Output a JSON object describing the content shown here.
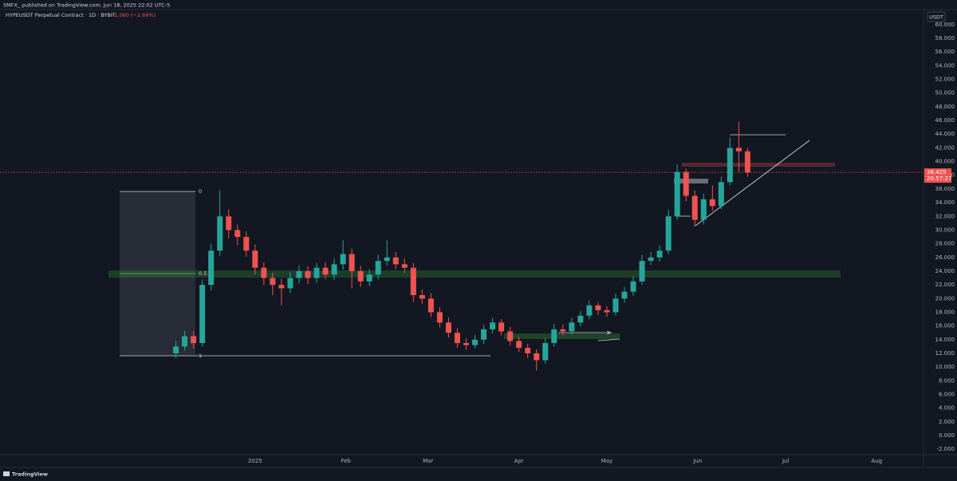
{
  "header": {
    "publisher": "SMFX_ published on TradingView.com, Jun 18, 2025 22:02 UTC-5"
  },
  "footer": {
    "logo": "TradingView"
  },
  "chart_data": {
    "type": "candlestick",
    "title": "HYPEUSDT Perpetual Contract · 1D · BYBIT",
    "change_label": "−1.060 (−2.68%)",
    "y_axis_label": "USDT",
    "last_price": 38.425,
    "countdown": "20:57:27",
    "annotations": [
      "0",
      "0.5",
      "1"
    ],
    "up_color": "#26a69a",
    "down_color": "#ef5350",
    "grid": false,
    "xlim": [
      -87,
      228
    ],
    "xticks": [
      {
        "value": 0,
        "label": "2025"
      },
      {
        "value": 31,
        "label": "Feb"
      },
      {
        "value": 59,
        "label": "Mar"
      },
      {
        "value": 90,
        "label": "Apr"
      },
      {
        "value": 120,
        "label": "May"
      },
      {
        "value": 151,
        "label": "Jun"
      },
      {
        "value": 181,
        "label": "Jul"
      },
      {
        "value": 212,
        "label": "Aug"
      }
    ],
    "ylim": [
      -2.8,
      62.2
    ],
    "yticks": [
      {
        "value": -2,
        "label": "-2.000"
      },
      {
        "value": 0,
        "label": "0.000"
      },
      {
        "value": 2,
        "label": "2.000"
      },
      {
        "value": 4,
        "label": "4.000"
      },
      {
        "value": 6,
        "label": "6.000"
      },
      {
        "value": 8,
        "label": "8.000"
      },
      {
        "value": 10,
        "label": "10.000"
      },
      {
        "value": 12,
        "label": "12.000"
      },
      {
        "value": 14,
        "label": "14.000"
      },
      {
        "value": 16,
        "label": "16.000"
      },
      {
        "value": 18,
        "label": "18.000"
      },
      {
        "value": 20,
        "label": "20.000"
      },
      {
        "value": 22,
        "label": "22.000"
      },
      {
        "value": 24,
        "label": "24.000"
      },
      {
        "value": 26,
        "label": "26.000"
      },
      {
        "value": 28,
        "label": "28.000"
      },
      {
        "value": 30,
        "label": "30.000"
      },
      {
        "value": 32,
        "label": "32.000"
      },
      {
        "value": 34,
        "label": "34.000"
      },
      {
        "value": 36,
        "label": "36.000"
      },
      {
        "value": 38,
        "label": "38.000"
      },
      {
        "value": 40,
        "label": "40.000"
      },
      {
        "value": 42,
        "label": "42.000"
      },
      {
        "value": 44,
        "label": "44.000"
      },
      {
        "value": 46,
        "label": "46.000"
      },
      {
        "value": 48,
        "label": "48.000"
      },
      {
        "value": 50,
        "label": "50.000"
      },
      {
        "value": 52,
        "label": "52.000"
      },
      {
        "value": 54,
        "label": "54.000"
      },
      {
        "value": 56,
        "label": "56.000"
      },
      {
        "value": 58,
        "label": "58.000"
      },
      {
        "value": 60,
        "label": "60.000"
      }
    ],
    "x": [
      -27,
      -24,
      -21,
      -18,
      -15,
      -12,
      -9,
      -6,
      -3,
      0,
      3,
      6,
      9,
      12,
      15,
      18,
      21,
      24,
      27,
      30,
      33,
      36,
      39,
      42,
      45,
      48,
      51,
      54,
      57,
      60,
      63,
      66,
      69,
      72,
      75,
      78,
      81,
      84,
      87,
      90,
      93,
      96,
      99,
      102,
      105,
      108,
      111,
      114,
      117,
      120,
      123,
      126,
      129,
      132,
      135,
      138,
      141,
      144,
      147,
      150,
      153,
      156,
      159,
      162,
      165,
      168
    ],
    "open": [
      12,
      13,
      14.5,
      13.5,
      22,
      27,
      32,
      30,
      29,
      27,
      24.5,
      23,
      22,
      21.5,
      23,
      24,
      23,
      24.5,
      23.5,
      25,
      26.5,
      24,
      22.5,
      23.5,
      25.5,
      26,
      25,
      24.5,
      20.5,
      20,
      18,
      16.5,
      15,
      13.5,
      13.2,
      14,
      15.5,
      16.5,
      15.2,
      13.8,
      12.8,
      12,
      11,
      13.5,
      15.5,
      15.2,
      16.5,
      17.5,
      19,
      18.3,
      18,
      20,
      21,
      22.5,
      25.5,
      26,
      27,
      32,
      38.5,
      35,
      31.5,
      34.5,
      33.5,
      37,
      42,
      41.5
    ],
    "high": [
      13.8,
      15.3,
      15.2,
      22.8,
      28,
      35.8,
      33,
      30.8,
      29.8,
      27.9,
      25.3,
      23.8,
      22.9,
      23.9,
      24.8,
      24.7,
      25.2,
      25.3,
      25.9,
      28.5,
      27.3,
      24.8,
      24.3,
      26.4,
      28.5,
      26.8,
      25.8,
      25.2,
      21.3,
      20.8,
      18.7,
      17.2,
      15.7,
      14.2,
      14.7,
      16.2,
      17.2,
      17,
      15.9,
      14.4,
      13.4,
      12.6,
      14.2,
      16.3,
      16.2,
      17.2,
      18.2,
      19.7,
      19.5,
      18.9,
      20.7,
      21.7,
      23.3,
      26.4,
      26.8,
      27.8,
      33,
      39.6,
      39,
      35.8,
      35.3,
      36.5,
      37.8,
      43.5,
      45.8,
      42
    ],
    "low": [
      11.3,
      12.4,
      12.7,
      13,
      21.2,
      26.2,
      28.8,
      27.8,
      26.1,
      23.5,
      22,
      20.5,
      19,
      20.8,
      22.2,
      22.1,
      22.3,
      22.8,
      22.7,
      24.2,
      21.5,
      21.7,
      21.8,
      22.8,
      24.8,
      24.3,
      23.7,
      19.5,
      19.2,
      17.3,
      15.8,
      14.3,
      12.8,
      12.5,
      12.7,
      13.4,
      14.9,
      14.6,
      13.1,
      12.2,
      11.3,
      9.5,
      10.5,
      13,
      14.6,
      14.7,
      15.9,
      17,
      17.6,
      17.3,
      17.5,
      19.4,
      20.4,
      22,
      24.9,
      25.4,
      26.5,
      31.5,
      34.2,
      30.5,
      30.8,
      32.8,
      33,
      36.5,
      38.5,
      37.8
    ],
    "close": [
      13,
      14.5,
      13.5,
      22,
      27,
      32,
      30,
      29,
      27,
      24.5,
      23,
      22,
      21.5,
      23,
      24,
      23,
      24.5,
      23.5,
      25,
      26.5,
      24,
      22.5,
      23.5,
      25.5,
      26,
      25,
      24.5,
      20.5,
      20,
      18,
      16.5,
      15,
      13.5,
      13.2,
      14,
      15.5,
      16.5,
      15.2,
      13.8,
      12.8,
      12,
      11,
      13.5,
      15.5,
      15.2,
      16.5,
      17.5,
      19,
      18.3,
      18,
      20,
      21,
      22.5,
      25.5,
      26,
      27,
      32,
      38.5,
      35,
      31.5,
      34.5,
      33.5,
      37,
      42,
      41.5,
      38.4
    ]
  }
}
